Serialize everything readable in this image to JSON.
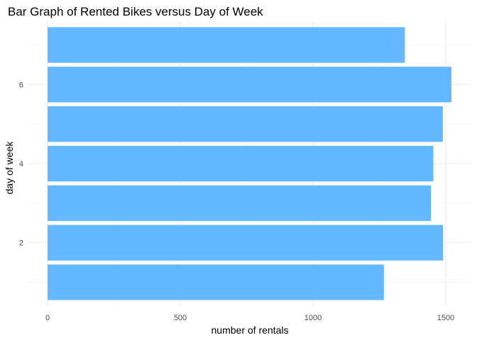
{
  "chart_data": {
    "type": "bar",
    "orientation": "horizontal",
    "title": "Bar Graph of Rented Bikes versus Day of Week",
    "xlabel": "number of rentals",
    "ylabel": "day of week",
    "categories": [
      1,
      2,
      3,
      4,
      5,
      6,
      7
    ],
    "values": [
      1267,
      1490,
      1444,
      1453,
      1489,
      1521,
      1346
    ],
    "xlim": [
      0,
      1590
    ],
    "ylim": [
      0.4,
      7.6
    ],
    "x_ticks": [
      0,
      500,
      1000,
      1500
    ],
    "x_tick_labels": [
      "0",
      "500",
      "1000",
      "1500"
    ],
    "y_ticks": [
      2,
      4,
      6
    ],
    "y_tick_labels": [
      "2",
      "4",
      "6"
    ],
    "bar_color": "#63b8ff",
    "grid": true,
    "legend": "none"
  }
}
